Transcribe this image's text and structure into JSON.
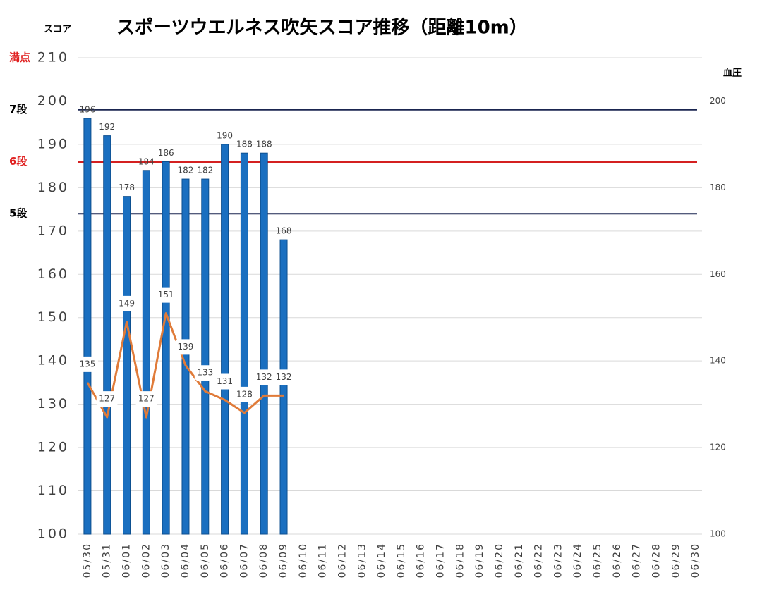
{
  "chart_data": {
    "type": "bar",
    "title": "スポーツウエルネス吹矢スコア推移（距離10m）",
    "y_label": "スコア",
    "y2_label": "血圧",
    "categories": [
      "05/30",
      "05/31",
      "06/01",
      "06/02",
      "06/03",
      "06/04",
      "06/05",
      "06/06",
      "06/07",
      "06/08",
      "06/09",
      "06/10",
      "06/11",
      "06/12",
      "06/13",
      "06/14",
      "06/15",
      "06/16",
      "06/17",
      "06/18",
      "06/19",
      "06/20",
      "06/21",
      "06/22",
      "06/23",
      "06/24",
      "06/25",
      "06/26",
      "06/27",
      "06/28",
      "06/29",
      "06/30"
    ],
    "series": [
      {
        "type": "bar",
        "color": "#1a6fc0",
        "values": [
          196,
          192,
          178,
          184,
          186,
          182,
          182,
          190,
          188,
          188,
          168,
          null,
          null,
          null,
          null,
          null,
          null,
          null,
          null,
          null,
          null,
          null,
          null,
          null,
          null,
          null,
          null,
          null,
          null,
          null,
          null,
          null
        ]
      },
      {
        "type": "line",
        "axis": "y2",
        "color": "#e07b39",
        "values": [
          135,
          127,
          149,
          127,
          151,
          139,
          133,
          131,
          128,
          132,
          132,
          null,
          null,
          null,
          null,
          null,
          null,
          null,
          null,
          null,
          null,
          null,
          null,
          null,
          null,
          null,
          null,
          null,
          null,
          null,
          null,
          null
        ]
      }
    ],
    "ylim": [
      100,
      210
    ],
    "yticks": [
      100,
      110,
      120,
      130,
      140,
      150,
      160,
      170,
      180,
      190,
      200,
      210
    ],
    "y2lim": [
      100,
      210
    ],
    "y2ticks": [
      100,
      120,
      140,
      160,
      180,
      200
    ],
    "grid": true,
    "levels": [
      {
        "label": "満点",
        "value": 210,
        "color": "#e02020",
        "line": false
      },
      {
        "label": "7段",
        "value": 198,
        "color": "#000000",
        "line_color": "#1a2550",
        "line": true
      },
      {
        "label": "6段",
        "value": 186,
        "color": "#e02020",
        "line_color": "#d42020",
        "line": true
      },
      {
        "label": "5段",
        "value": 174,
        "color": "#000000",
        "line_color": "#1a2550",
        "line": true
      }
    ]
  }
}
